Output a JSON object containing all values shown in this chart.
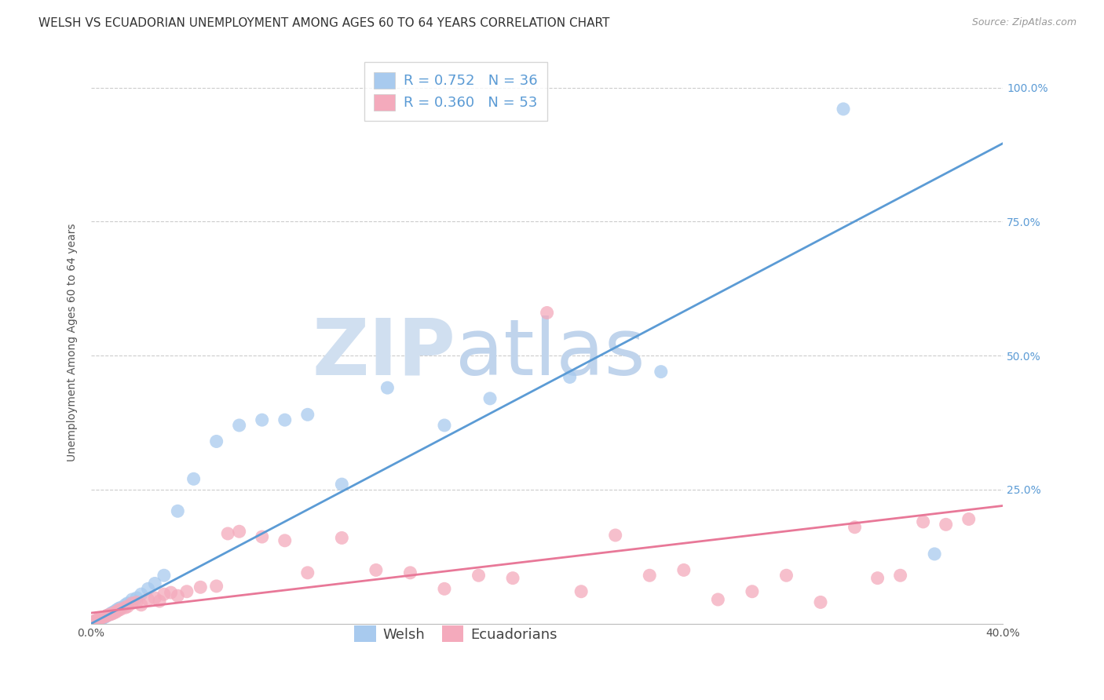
{
  "title": "WELSH VS ECUADORIAN UNEMPLOYMENT AMONG AGES 60 TO 64 YEARS CORRELATION CHART",
  "source": "Source: ZipAtlas.com",
  "ylabel": "Unemployment Among Ages 60 to 64 years",
  "xlim": [
    0.0,
    0.4
  ],
  "ylim": [
    0.0,
    1.05
  ],
  "xtick_labels": [
    "0.0%",
    "40.0%"
  ],
  "ytick_labels": [
    "25.0%",
    "50.0%",
    "75.0%",
    "100.0%"
  ],
  "ytick_values": [
    0.25,
    0.5,
    0.75,
    1.0
  ],
  "xtick_values": [
    0.0,
    0.4
  ],
  "welsh_color": "#A8CAEE",
  "ecuadorian_color": "#F4AABC",
  "welsh_line_color": "#5B9BD5",
  "ecuadorian_line_color": "#E87898",
  "welsh_R": 0.752,
  "welsh_N": 36,
  "ecuadorian_R": 0.36,
  "ecuadorian_N": 53,
  "legend_text_color": "#5B9BD5",
  "watermark_zip": "ZIP",
  "watermark_atlas": "atlas",
  "watermark_color_zip": "#C8D8F0",
  "watermark_color_atlas": "#C8D8F0",
  "background_color": "#FFFFFF",
  "grid_color": "#CCCCCC",
  "welsh_x": [
    0.001,
    0.002,
    0.003,
    0.004,
    0.005,
    0.006,
    0.007,
    0.008,
    0.009,
    0.01,
    0.011,
    0.012,
    0.013,
    0.015,
    0.016,
    0.018,
    0.02,
    0.022,
    0.025,
    0.028,
    0.032,
    0.038,
    0.045,
    0.055,
    0.065,
    0.075,
    0.085,
    0.095,
    0.11,
    0.13,
    0.155,
    0.175,
    0.21,
    0.25,
    0.33,
    0.37
  ],
  "welsh_y": [
    0.003,
    0.005,
    0.007,
    0.008,
    0.01,
    0.012,
    0.015,
    0.017,
    0.02,
    0.022,
    0.025,
    0.028,
    0.03,
    0.035,
    0.038,
    0.045,
    0.048,
    0.055,
    0.065,
    0.075,
    0.09,
    0.21,
    0.27,
    0.34,
    0.37,
    0.38,
    0.38,
    0.39,
    0.26,
    0.44,
    0.37,
    0.42,
    0.46,
    0.47,
    0.96,
    0.13
  ],
  "ecuadorian_x": [
    0.001,
    0.002,
    0.003,
    0.004,
    0.005,
    0.006,
    0.007,
    0.008,
    0.009,
    0.01,
    0.011,
    0.012,
    0.013,
    0.015,
    0.016,
    0.018,
    0.02,
    0.022,
    0.025,
    0.028,
    0.03,
    0.032,
    0.035,
    0.038,
    0.042,
    0.048,
    0.055,
    0.06,
    0.065,
    0.075,
    0.085,
    0.095,
    0.11,
    0.125,
    0.14,
    0.155,
    0.17,
    0.185,
    0.2,
    0.215,
    0.23,
    0.245,
    0.26,
    0.275,
    0.29,
    0.305,
    0.32,
    0.335,
    0.345,
    0.355,
    0.365,
    0.375,
    0.385
  ],
  "ecuadorian_y": [
    0.004,
    0.006,
    0.008,
    0.01,
    0.012,
    0.013,
    0.015,
    0.017,
    0.018,
    0.02,
    0.022,
    0.025,
    0.027,
    0.03,
    0.032,
    0.038,
    0.04,
    0.035,
    0.045,
    0.048,
    0.042,
    0.055,
    0.058,
    0.052,
    0.06,
    0.068,
    0.07,
    0.168,
    0.172,
    0.162,
    0.155,
    0.095,
    0.16,
    0.1,
    0.095,
    0.065,
    0.09,
    0.085,
    0.58,
    0.06,
    0.165,
    0.09,
    0.1,
    0.045,
    0.06,
    0.09,
    0.04,
    0.18,
    0.085,
    0.09,
    0.19,
    0.185,
    0.195
  ],
  "title_fontsize": 11,
  "axis_label_fontsize": 10,
  "tick_fontsize": 10,
  "legend_fontsize": 13,
  "source_fontsize": 9
}
